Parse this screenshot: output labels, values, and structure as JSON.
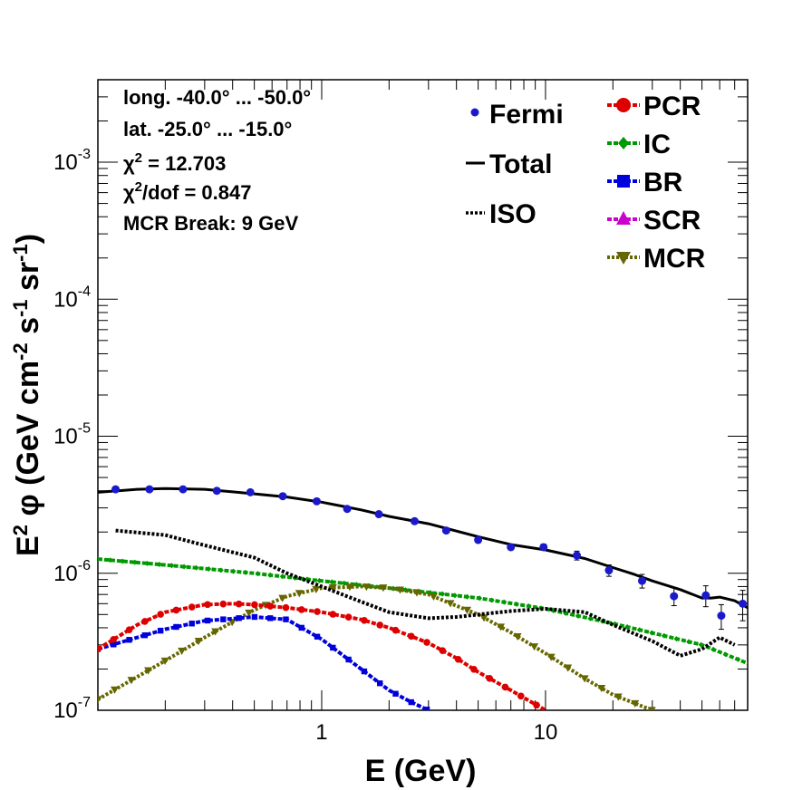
{
  "chart_data": {
    "type": "line",
    "xlabel": "E (GeV)",
    "ylabel": "E² φ (GeV cm⁻² s⁻¹ sr⁻¹)",
    "ylabel_parts": {
      "a": "E",
      "b": "2",
      "c": " φ (GeV cm",
      "d": "-2",
      "e": " s",
      "f": "-1",
      "g": " sr",
      "h": "-1",
      "i": ")"
    },
    "xscale": "log",
    "yscale": "log",
    "xlim": [
      0.1,
      80
    ],
    "ylim": [
      1e-07,
      0.004
    ],
    "x_ticks": [
      {
        "v": 1,
        "label": "1"
      },
      {
        "v": 10,
        "label": "10"
      }
    ],
    "y_ticks": [
      {
        "v": 1e-07,
        "base": "10",
        "exp": "-7"
      },
      {
        "v": 1e-06,
        "base": "10",
        "exp": "-6"
      },
      {
        "v": 1e-05,
        "base": "10",
        "exp": "-5"
      },
      {
        "v": 0.0001,
        "base": "10",
        "exp": "-4"
      },
      {
        "v": 0.001,
        "base": "10",
        "exp": "-3"
      }
    ],
    "info": {
      "longitude": "long. -40.0° ... -50.0°",
      "latitude": "lat. -25.0° ... -15.0°",
      "chi2_sym": "χ",
      "chi2_sup": "2",
      "chi2_value": " = 12.703",
      "chi2dof_sup": "2",
      "chi2dof_value": "/dof = 0.847",
      "break": "MCR Break:  9 GeV"
    },
    "legend": {
      "fermi": "Fermi",
      "total": "Total",
      "iso": "ISO",
      "pcr": "PCR",
      "ic": "IC",
      "br": "BR",
      "scr": "SCR",
      "mcr": "MCR"
    },
    "colors": {
      "fermi": "#1a1acc",
      "total": "#000000",
      "iso": "#000000",
      "pcr": "#dd0000",
      "ic": "#009900",
      "br": "#0000dd",
      "scr": "#cc00cc",
      "mcr": "#666600"
    },
    "fermi_points": [
      {
        "x": 0.12,
        "y": 4.1e-06,
        "err": 1e-07
      },
      {
        "x": 0.17,
        "y": 4.1e-06,
        "err": 1e-07
      },
      {
        "x": 0.24,
        "y": 4.1e-06,
        "err": 1e-07
      },
      {
        "x": 0.34,
        "y": 4e-06,
        "err": 1e-07
      },
      {
        "x": 0.48,
        "y": 3.9e-06,
        "err": 1e-07
      },
      {
        "x": 0.67,
        "y": 3.65e-06,
        "err": 1e-07
      },
      {
        "x": 0.95,
        "y": 3.35e-06,
        "err": 1e-07
      },
      {
        "x": 1.3,
        "y": 2.95e-06,
        "err": 8e-08
      },
      {
        "x": 1.8,
        "y": 2.7e-06,
        "err": 8e-08
      },
      {
        "x": 2.6,
        "y": 2.4e-06,
        "err": 8e-08
      },
      {
        "x": 3.6,
        "y": 2.05e-06,
        "err": 8e-08
      },
      {
        "x": 5.0,
        "y": 1.75e-06,
        "err": 7e-08
      },
      {
        "x": 7.0,
        "y": 1.55e-06,
        "err": 7e-08
      },
      {
        "x": 9.8,
        "y": 1.55e-06,
        "err": 8e-08
      },
      {
        "x": 13.8,
        "y": 1.35e-06,
        "err": 1e-07
      },
      {
        "x": 19.2,
        "y": 1.05e-06,
        "err": 1e-07
      },
      {
        "x": 27,
        "y": 8.8e-07,
        "err": 1e-07
      },
      {
        "x": 37.5,
        "y": 6.8e-07,
        "err": 1e-07
      },
      {
        "x": 52,
        "y": 6.9e-07,
        "err": 1.2e-07
      },
      {
        "x": 61,
        "y": 4.9e-07,
        "err": 1e-07
      },
      {
        "x": 76,
        "y": 6e-07,
        "err": 1.5e-07
      }
    ],
    "total": {
      "x": [
        0.1,
        0.15,
        0.2,
        0.3,
        0.5,
        0.7,
        1,
        1.5,
        2,
        3,
        5,
        7,
        10,
        15,
        20,
        25,
        30,
        40,
        50,
        55,
        60,
        70,
        80
      ],
      "y": [
        3.9e-06,
        4.1e-06,
        4.15e-06,
        4.1e-06,
        3.8e-06,
        3.6e-06,
        3.3e-06,
        2.9e-06,
        2.6e-06,
        2.3e-06,
        1.85e-06,
        1.62e-06,
        1.48e-06,
        1.28e-06,
        1.1e-06,
        9.8e-07,
        8.8e-07,
        7.6e-07,
        6.6e-07,
        6.6e-07,
        6.7e-07,
        6.3e-07,
        5.6e-07
      ]
    },
    "iso": {
      "x": [
        0.12,
        0.2,
        0.3,
        0.5,
        0.7,
        1,
        1.5,
        2,
        3,
        4,
        5,
        7,
        10,
        15,
        20,
        30,
        40,
        50,
        60,
        70
      ],
      "y": [
        2.05e-06,
        1.9e-06,
        1.6e-06,
        1.3e-06,
        1e-06,
        8e-07,
        6.2e-07,
        5.2e-07,
        4.7e-07,
        4.8e-07,
        5e-07,
        5.3e-07,
        5.5e-07,
        5.2e-07,
        4.2e-07,
        3.2e-07,
        2.5e-07,
        2.8e-07,
        3.4e-07,
        3e-07
      ]
    },
    "ic": {
      "x": [
        0.1,
        0.2,
        0.5,
        1,
        2,
        5,
        10,
        20,
        50,
        80
      ],
      "y": [
        1.27e-06,
        1.15e-06,
        1e-06,
        8.8e-07,
        7.8e-07,
        6.6e-07,
        5.5e-07,
        4.3e-07,
        3e-07,
        2.2e-07
      ]
    },
    "pcr": {
      "x": [
        0.1,
        0.15,
        0.2,
        0.3,
        0.4,
        0.5,
        0.7,
        1,
        1.5,
        2,
        3,
        4,
        5,
        7,
        10
      ],
      "y": [
        2.8e-07,
        4.2e-07,
        5.2e-07,
        5.9e-07,
        6e-07,
        5.9e-07,
        5.6e-07,
        5.2e-07,
        4.6e-07,
        4e-07,
        3.1e-07,
        2.4e-07,
        1.9e-07,
        1.4e-07,
        1e-07
      ]
    },
    "br": {
      "x": [
        0.1,
        0.2,
        0.3,
        0.5,
        0.7,
        1,
        1.5,
        2,
        2.5,
        3
      ],
      "y": [
        2.8e-07,
        3.9e-07,
        4.5e-07,
        4.8e-07,
        4.6e-07,
        3.3e-07,
        2e-07,
        1.4e-07,
        1.15e-07,
        1e-07
      ]
    },
    "mcr": {
      "x": [
        0.1,
        0.2,
        0.3,
        0.5,
        0.7,
        1,
        1.5,
        2,
        3,
        5,
        7,
        10,
        15,
        20,
        30
      ],
      "y": [
        1.2e-07,
        2.3e-07,
        3.4e-07,
        5.4e-07,
        6.8e-07,
        7.8e-07,
        8e-07,
        7.8e-07,
        7e-07,
        5e-07,
        3.7e-07,
        2.6e-07,
        1.7e-07,
        1.3e-07,
        1e-07
      ]
    }
  }
}
